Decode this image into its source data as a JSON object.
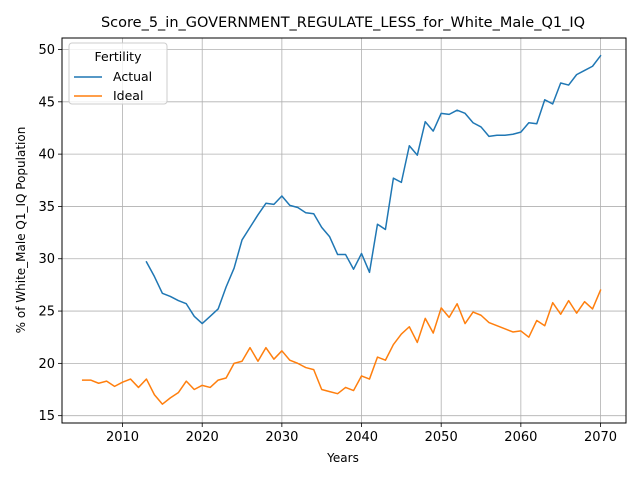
{
  "chart_data": {
    "type": "line",
    "title": "Score_5_in_GOVERNMENT_REGULATE_LESS_for_White_Male_Q1_IQ",
    "xlabel": "Years",
    "ylabel": "% of White_Male Q1_IQ Population",
    "xlim": [
      2002.4,
      2073.2
    ],
    "ylim": [
      14.3,
      51.1
    ],
    "xticks": [
      2010,
      2020,
      2030,
      2040,
      2050,
      2060,
      2070
    ],
    "yticks": [
      15,
      20,
      25,
      30,
      35,
      40,
      45,
      50
    ],
    "grid": true,
    "legend": {
      "title": "Fertility",
      "placement": "upper-left"
    },
    "series": [
      {
        "name": "Actual",
        "color": "#1f77b4",
        "x": [
          2013,
          2014,
          2015,
          2016,
          2017,
          2018,
          2019,
          2020,
          2021,
          2022,
          2023,
          2024,
          2025,
          2026,
          2027,
          2028,
          2029,
          2030,
          2031,
          2032,
          2033,
          2034,
          2035,
          2036,
          2037,
          2038,
          2039,
          2040,
          2041,
          2042,
          2043,
          2044,
          2045,
          2046,
          2047,
          2048,
          2049,
          2050,
          2051,
          2052,
          2053,
          2054,
          2055,
          2056,
          2057,
          2058,
          2059,
          2060,
          2061,
          2062,
          2063,
          2064,
          2065,
          2066,
          2067,
          2068,
          2069,
          2070
        ],
        "y": [
          29.7,
          28.3,
          26.7,
          26.4,
          26.0,
          25.7,
          24.5,
          23.8,
          24.5,
          25.2,
          27.3,
          29.1,
          31.8,
          33.0,
          34.2,
          35.3,
          35.2,
          36.0,
          35.1,
          34.9,
          34.4,
          34.3,
          33.0,
          32.1,
          30.4,
          30.4,
          29.0,
          30.5,
          28.7,
          33.3,
          32.8,
          37.7,
          37.3,
          40.8,
          39.9,
          43.1,
          42.2,
          43.9,
          43.8,
          44.2,
          43.9,
          43.0,
          42.6,
          41.7,
          41.8,
          41.8,
          41.9,
          42.1,
          43.0,
          42.9,
          45.2,
          44.8,
          46.8,
          46.6,
          47.6,
          48.0,
          48.4,
          49.4
        ]
      },
      {
        "name": "Ideal",
        "color": "#ff7f0e",
        "x": [
          2005,
          2006,
          2007,
          2008,
          2009,
          2010,
          2011,
          2012,
          2013,
          2014,
          2015,
          2016,
          2017,
          2018,
          2019,
          2020,
          2021,
          2022,
          2023,
          2024,
          2025,
          2026,
          2027,
          2028,
          2029,
          2030,
          2031,
          2032,
          2033,
          2034,
          2035,
          2036,
          2037,
          2038,
          2039,
          2040,
          2041,
          2042,
          2043,
          2044,
          2045,
          2046,
          2047,
          2048,
          2049,
          2050,
          2051,
          2052,
          2053,
          2054,
          2055,
          2056,
          2057,
          2058,
          2059,
          2060,
          2061,
          2062,
          2063,
          2064,
          2065,
          2066,
          2067,
          2068,
          2069,
          2070
        ],
        "y": [
          18.4,
          18.4,
          18.1,
          18.3,
          17.8,
          18.2,
          18.5,
          17.7,
          18.5,
          17.0,
          16.1,
          16.7,
          17.2,
          18.3,
          17.5,
          17.9,
          17.7,
          18.4,
          18.6,
          20.0,
          20.2,
          21.5,
          20.2,
          21.5,
          20.4,
          21.2,
          20.3,
          20.0,
          19.6,
          19.4,
          17.5,
          17.3,
          17.1,
          17.7,
          17.4,
          18.8,
          18.5,
          20.6,
          20.3,
          21.8,
          22.8,
          23.5,
          22.0,
          24.3,
          22.9,
          25.3,
          24.4,
          25.7,
          23.8,
          24.9,
          24.6,
          23.9,
          23.6,
          23.3,
          23.0,
          23.1,
          22.5,
          24.1,
          23.6,
          25.8,
          24.7,
          26.0,
          24.8,
          25.9,
          25.2,
          27.0
        ]
      }
    ]
  }
}
